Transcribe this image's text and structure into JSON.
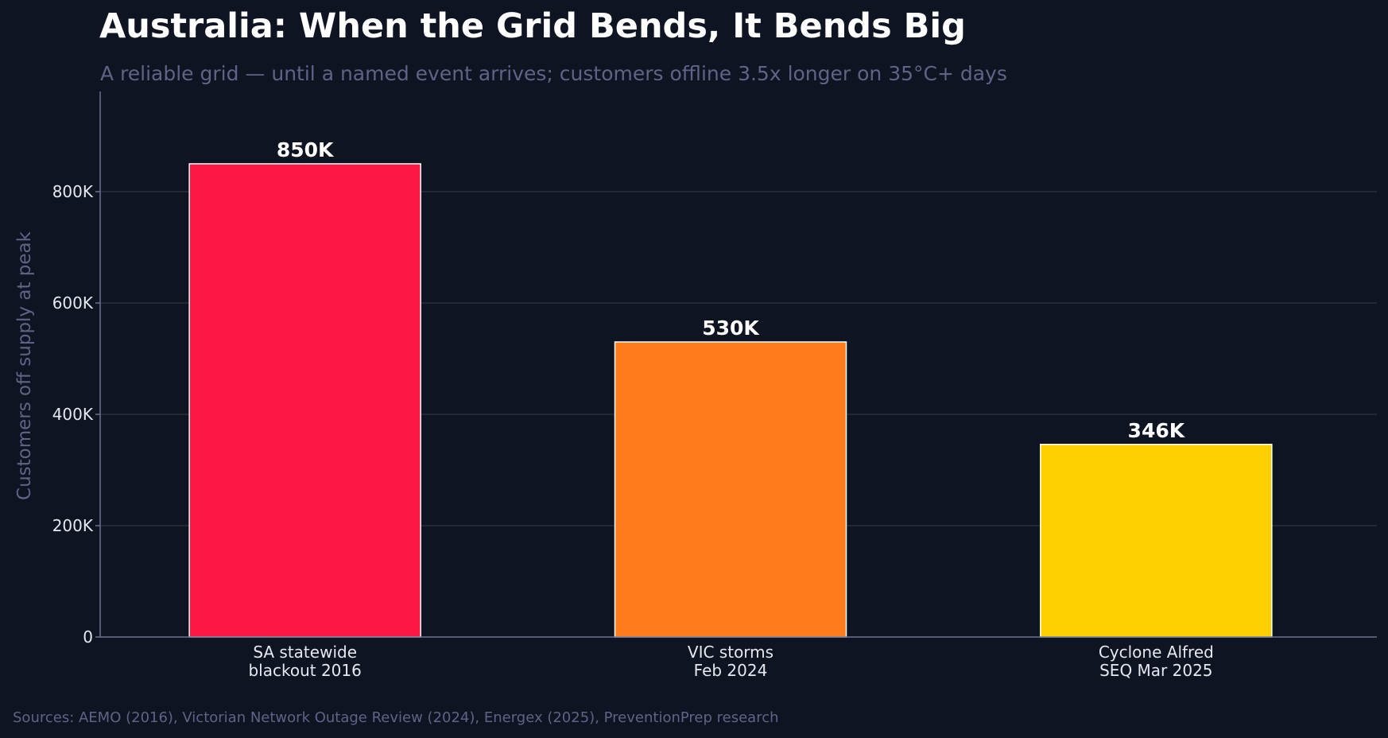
{
  "page": {
    "title": "Australia: When the Grid Bends, It Bends Big",
    "subtitle": "A reliable grid — until a named event arrives; customers offline 3.5x longer on 35°C+ days",
    "source": "Sources: AEMO (2016), Victorian Network Outage Review (2024), Energex (2025), PreventionPrep research"
  },
  "colors": {
    "background": "#0f1423",
    "axis": "#6b7190",
    "grid": "#222839",
    "tick_text": "#e6e8ef",
    "muted_text": "#5e6486",
    "value_label": "#ffffff",
    "bar_edge": "#ffffff"
  },
  "chart_data": {
    "type": "bar",
    "categories": [
      [
        "SA statewide",
        "blackout 2016"
      ],
      [
        "VIC storms",
        "Feb 2024"
      ],
      [
        "Cyclone Alfred",
        "SEQ Mar 2025"
      ]
    ],
    "values": [
      850000,
      530000,
      346000
    ],
    "value_labels": [
      "850K",
      "530K",
      "346K"
    ],
    "bar_colors": [
      "#ff1744",
      "#ff7b1c",
      "#ffd000"
    ],
    "ylabel": "Customers off supply at peak",
    "xlabel": "",
    "ylim": [
      0,
      980000
    ],
    "yticks": [
      0,
      200000,
      400000,
      600000,
      800000
    ],
    "ytick_labels": [
      "0",
      "200K",
      "400K",
      "600K",
      "800K"
    ],
    "grid": "y-axis, horizontal lines",
    "legend": "none"
  }
}
